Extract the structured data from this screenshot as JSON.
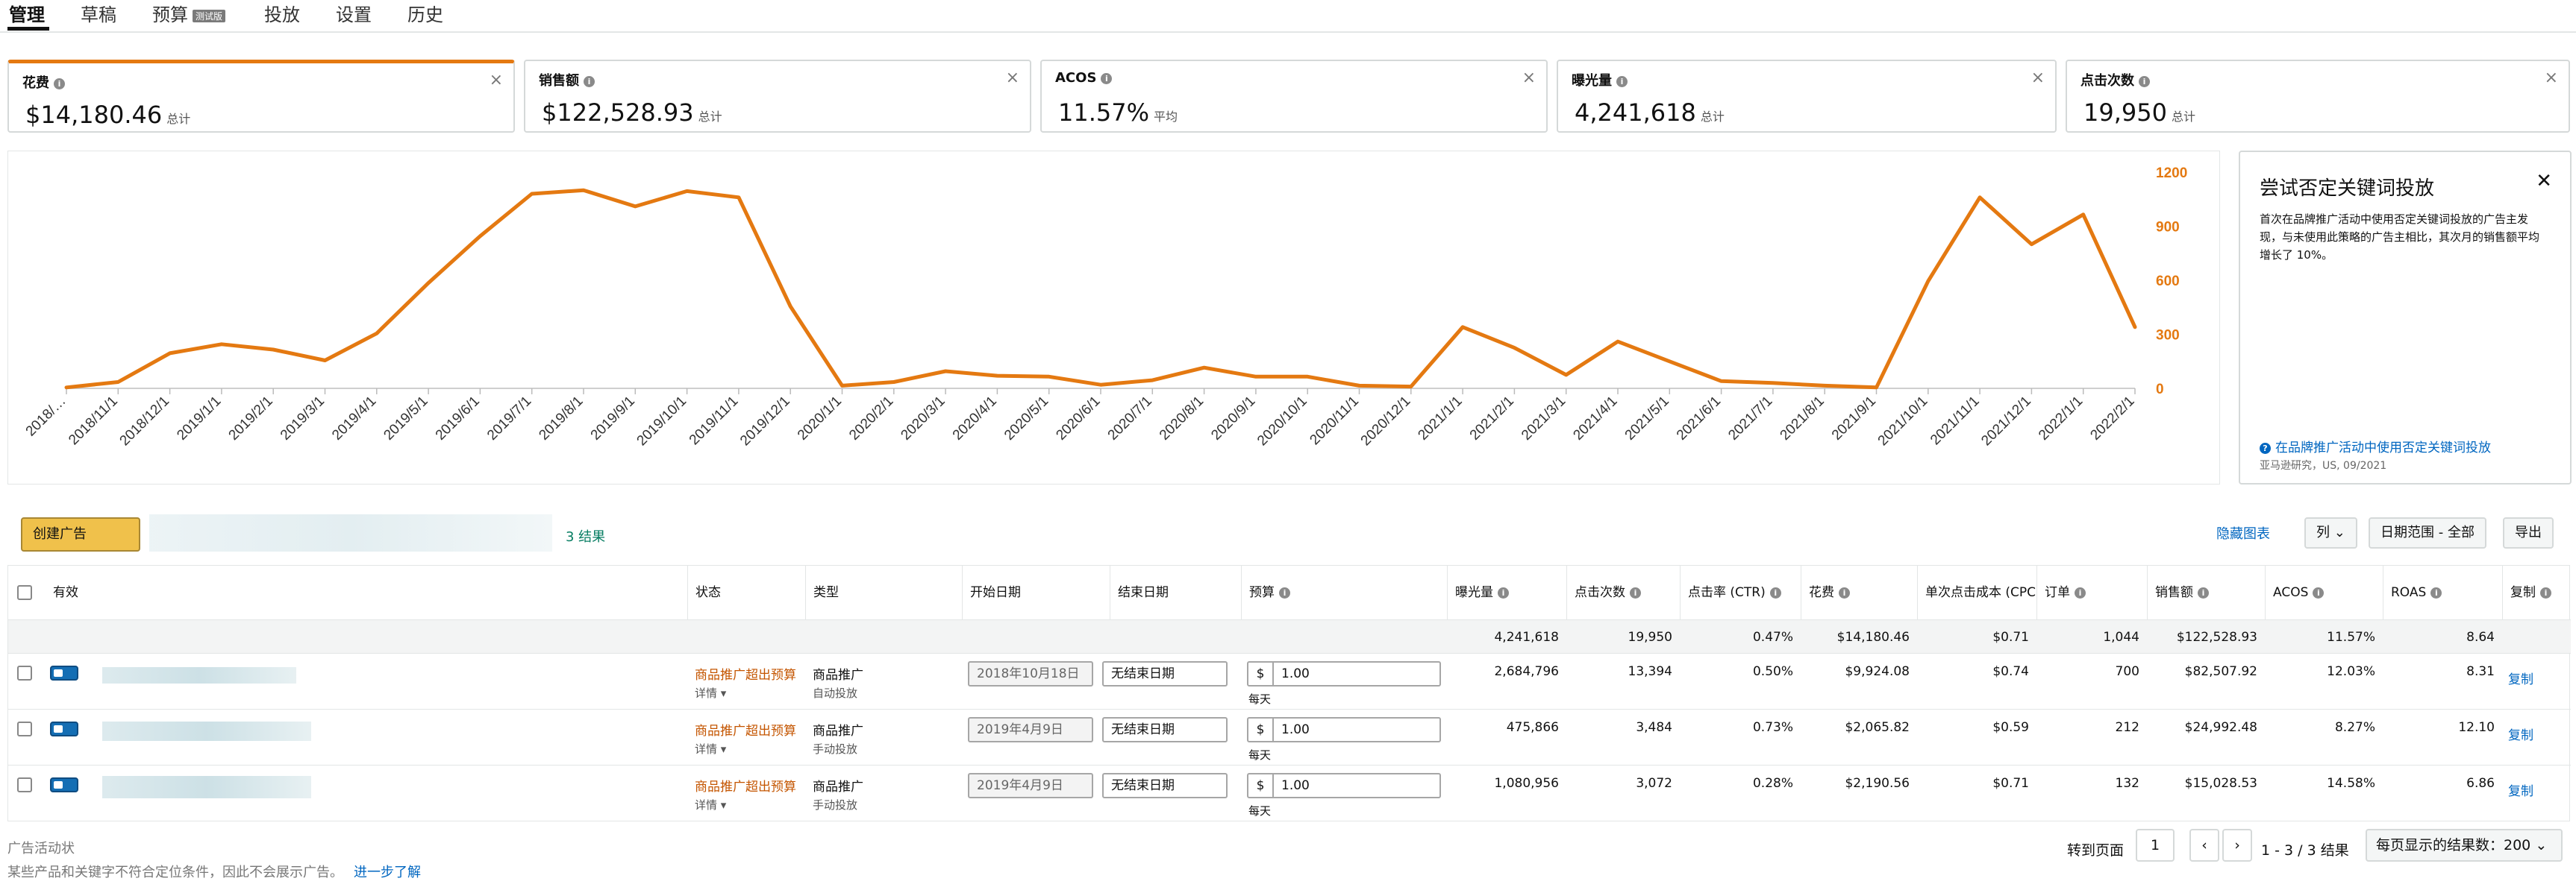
{
  "tabs": [
    {
      "label": "管理"
    },
    {
      "label": "草稿"
    },
    {
      "label": "预算",
      "badge": "测试版"
    },
    {
      "label": "投放"
    },
    {
      "label": "设置"
    },
    {
      "label": "历史"
    }
  ],
  "metrics": [
    {
      "label": "花费",
      "value": "$14,180.46",
      "sub": "总计",
      "selected": true
    },
    {
      "label": "销售额",
      "value": "$122,528.93",
      "sub": "总计"
    },
    {
      "label": "ACOS",
      "value": "11.57%",
      "sub": "平均"
    },
    {
      "label": "曝光量",
      "value": "4,241,618",
      "sub": "总计"
    },
    {
      "label": "点击次数",
      "value": "19,950",
      "sub": "总计"
    }
  ],
  "colors": {
    "accent": "#e47911",
    "link": "#0066c0",
    "warning": "#c45500",
    "success": "#067d62",
    "toggle": "#146eb4"
  },
  "chart_data": {
    "type": "line",
    "x": [
      "2018/…",
      "2018/11/1",
      "2018/12/1",
      "2019/1/1",
      "2019/2/1",
      "2019/3/1",
      "2019/4/1",
      "2019/5/1",
      "2019/6/1",
      "2019/7/1",
      "2019/8/1",
      "2019/9/1",
      "2019/10/1",
      "2019/11/1",
      "2019/12/1",
      "2020/1/1",
      "2020/2/1",
      "2020/3/1",
      "2020/4/1",
      "2020/5/1",
      "2020/6/1",
      "2020/7/1",
      "2020/8/1",
      "2020/9/1",
      "2020/10/1",
      "2020/11/1",
      "2020/12/1",
      "2021/1/1",
      "2021/2/1",
      "2021/3/1",
      "2021/4/1",
      "2021/5/1",
      "2021/6/1",
      "2021/7/1",
      "2021/8/1",
      "2021/9/1",
      "2021/10/1",
      "2021/11/1",
      "2021/12/1",
      "2022/1/1",
      "2022/2/1"
    ],
    "series": [
      {
        "values": [
          5,
          35,
          195,
          245,
          215,
          155,
          305,
          585,
          845,
          1080,
          1100,
          1010,
          1095,
          1060,
          455,
          15,
          35,
          95,
          70,
          65,
          20,
          45,
          115,
          65,
          65,
          15,
          10,
          340,
          225,
          75,
          260,
          150,
          40,
          30,
          15,
          5,
          595,
          1060,
          800,
          965,
          340
        ]
      }
    ],
    "y_ticks": [
      "1200",
      "900",
      "600",
      "300",
      "0"
    ],
    "ylim": [
      0,
      1200
    ],
    "grid": false,
    "y_axis_position": "right",
    "color": "#e47911"
  },
  "promo": {
    "title": "尝试否定关键词投放",
    "body": "首次在品牌推广活动中使用否定关键词投放的广告主发现，与未使用此策略的广告主相比，其次月的销售额平均增长了 10%。",
    "link": "在品牌推广活动中使用否定关键词投放",
    "source": "亚马逊研究，US, 09/2021"
  },
  "toolbar": {
    "create_label": "创建广告",
    "results": "3 结果",
    "hide_chart": "隐藏图表",
    "columns": "列",
    "date_range": "日期范围 - 全部",
    "export": "导出"
  },
  "table": {
    "headers": {
      "active": "有效",
      "status": "状态",
      "type": "类型",
      "start": "开始日期",
      "end": "结束日期",
      "budget": "预算",
      "impressions": "曝光量",
      "clicks": "点击次数",
      "ctr": "点击率 (CTR)",
      "spend": "花费",
      "cpc": "单次点击成本 (CPC)",
      "orders": "订单",
      "sales": "销售额",
      "acos": "ACOS",
      "roas": "ROAS",
      "copy": "复制"
    },
    "totals": {
      "impressions": "4,241,618",
      "clicks": "19,950",
      "ctr": "0.47%",
      "spend": "$14,180.46",
      "cpc": "$0.71",
      "orders": "1,044",
      "sales": "$122,528.93",
      "acos": "11.57%",
      "roas": "8.64"
    },
    "rows": [
      {
        "status": "商品推广超出预算",
        "detail": "详情",
        "type": "商品推广",
        "type_sub": "自动投放",
        "start": "2018年10月18日",
        "end": "无结束日期",
        "currency": "$",
        "budget": "1.00",
        "per_day": "每天",
        "impressions": "2,684,796",
        "clicks": "13,394",
        "ctr": "0.50%",
        "spend": "$9,924.08",
        "cpc": "$0.74",
        "orders": "700",
        "sales": "$82,507.92",
        "acos": "12.03%",
        "roas": "8.31",
        "copy": "复制"
      },
      {
        "status": "商品推广超出预算",
        "detail": "详情",
        "type": "商品推广",
        "type_sub": "手动投放",
        "start": "2019年4月9日",
        "end": "无结束日期",
        "currency": "$",
        "budget": "1.00",
        "per_day": "每天",
        "impressions": "475,866",
        "clicks": "3,484",
        "ctr": "0.73%",
        "spend": "$2,065.82",
        "cpc": "$0.59",
        "orders": "212",
        "sales": "$24,992.48",
        "acos": "8.27%",
        "roas": "12.10",
        "copy": "复制"
      },
      {
        "status": "商品推广超出预算",
        "detail": "详情",
        "type": "商品推广",
        "type_sub": "手动投放",
        "start": "2019年4月9日",
        "end": "无结束日期",
        "currency": "$",
        "budget": "1.00",
        "per_day": "每天",
        "impressions": "1,080,956",
        "clicks": "3,072",
        "ctr": "0.28%",
        "spend": "$2,190.56",
        "cpc": "$0.71",
        "orders": "132",
        "sales": "$15,028.53",
        "acos": "14.58%",
        "roas": "6.86",
        "copy": "复制"
      }
    ]
  },
  "footer": {
    "note1": "广告活动状",
    "note2": "某些产品和关键字不符合定位条件，因此不会展示广告。",
    "learn_more": "进一步了解",
    "goto_label": "转到页面",
    "page": "1",
    "range": "1 - 3 / 3 结果",
    "per_page": "每页显示的结果数：200"
  }
}
